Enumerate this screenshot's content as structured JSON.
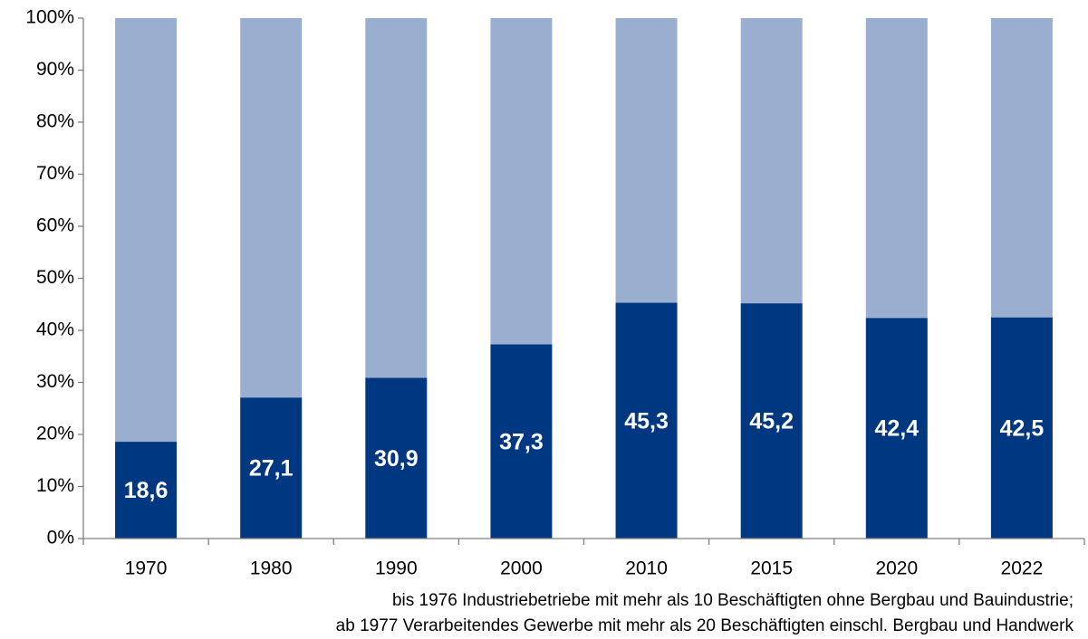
{
  "chart_data": {
    "type": "stacked_bar",
    "categories": [
      "1970",
      "1980",
      "1990",
      "2000",
      "2010",
      "2015",
      "2020",
      "2022"
    ],
    "series": [
      {
        "color": "#003781",
        "values": [
          18.6,
          27.1,
          30.9,
          37.3,
          45.3,
          45.2,
          42.4,
          42.5
        ],
        "value_labels": [
          "18,6",
          "27,1",
          "30,9",
          "37,3",
          "45,3",
          "45,2",
          "42,4",
          "42,5"
        ]
      },
      {
        "color": "#9aafcf",
        "values": [
          81.4,
          72.9,
          69.1,
          62.7,
          54.7,
          54.8,
          57.6,
          57.5
        ]
      }
    ],
    "ylim": [
      0,
      100
    ],
    "yticks": [
      {
        "value": 0,
        "label": "0%"
      },
      {
        "value": 10,
        "label": "10%"
      },
      {
        "value": 20,
        "label": "20%"
      },
      {
        "value": 30,
        "label": "30%"
      },
      {
        "value": 40,
        "label": "40%"
      },
      {
        "value": 50,
        "label": "50%"
      },
      {
        "value": 60,
        "label": "60%"
      },
      {
        "value": 70,
        "label": "70%"
      },
      {
        "value": 80,
        "label": "80%"
      },
      {
        "value": 90,
        "label": "90%"
      },
      {
        "value": 100,
        "label": "100%"
      }
    ],
    "notes": [
      "bis 1976 Industriebetriebe mit mehr als 10 Beschäftigten ohne Bergbau und Bauindustrie;",
      "ab 1977 Verarbeitendes Gewerbe mit mehr als 20 Beschäftigten einschl. Bergbau und Handwerk"
    ]
  }
}
